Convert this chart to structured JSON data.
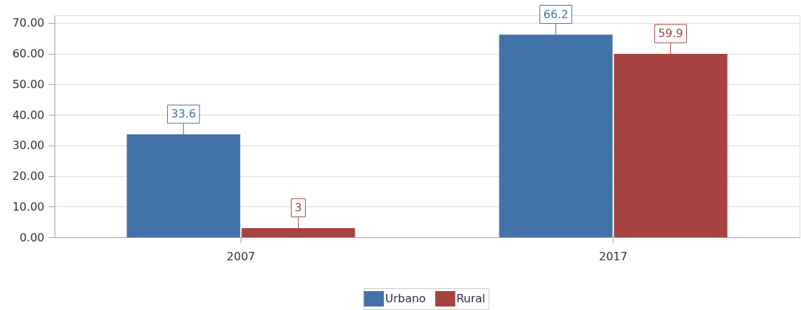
{
  "chart_data": {
    "type": "bar",
    "categories": [
      "2007",
      "2017"
    ],
    "series": [
      {
        "name": "Urbano",
        "color": "#4372a8",
        "values": [
          33.6,
          66.2
        ]
      },
      {
        "name": "Rural",
        "color": "#a6423f",
        "values": [
          3,
          59.9
        ]
      }
    ],
    "ylim": [
      0,
      72.5
    ],
    "yticks": [
      {
        "value": 0,
        "label": "0.00"
      },
      {
        "value": 10,
        "label": "10.00"
      },
      {
        "value": 20,
        "label": "20.00"
      },
      {
        "value": 30,
        "label": "30.00"
      },
      {
        "value": 40,
        "label": "40.00"
      },
      {
        "value": 50,
        "label": "50.00"
      },
      {
        "value": 60,
        "label": "60.00"
      },
      {
        "value": 70,
        "label": "70.00"
      }
    ],
    "grid": "y",
    "legend": "bottom",
    "data_labels": true
  }
}
